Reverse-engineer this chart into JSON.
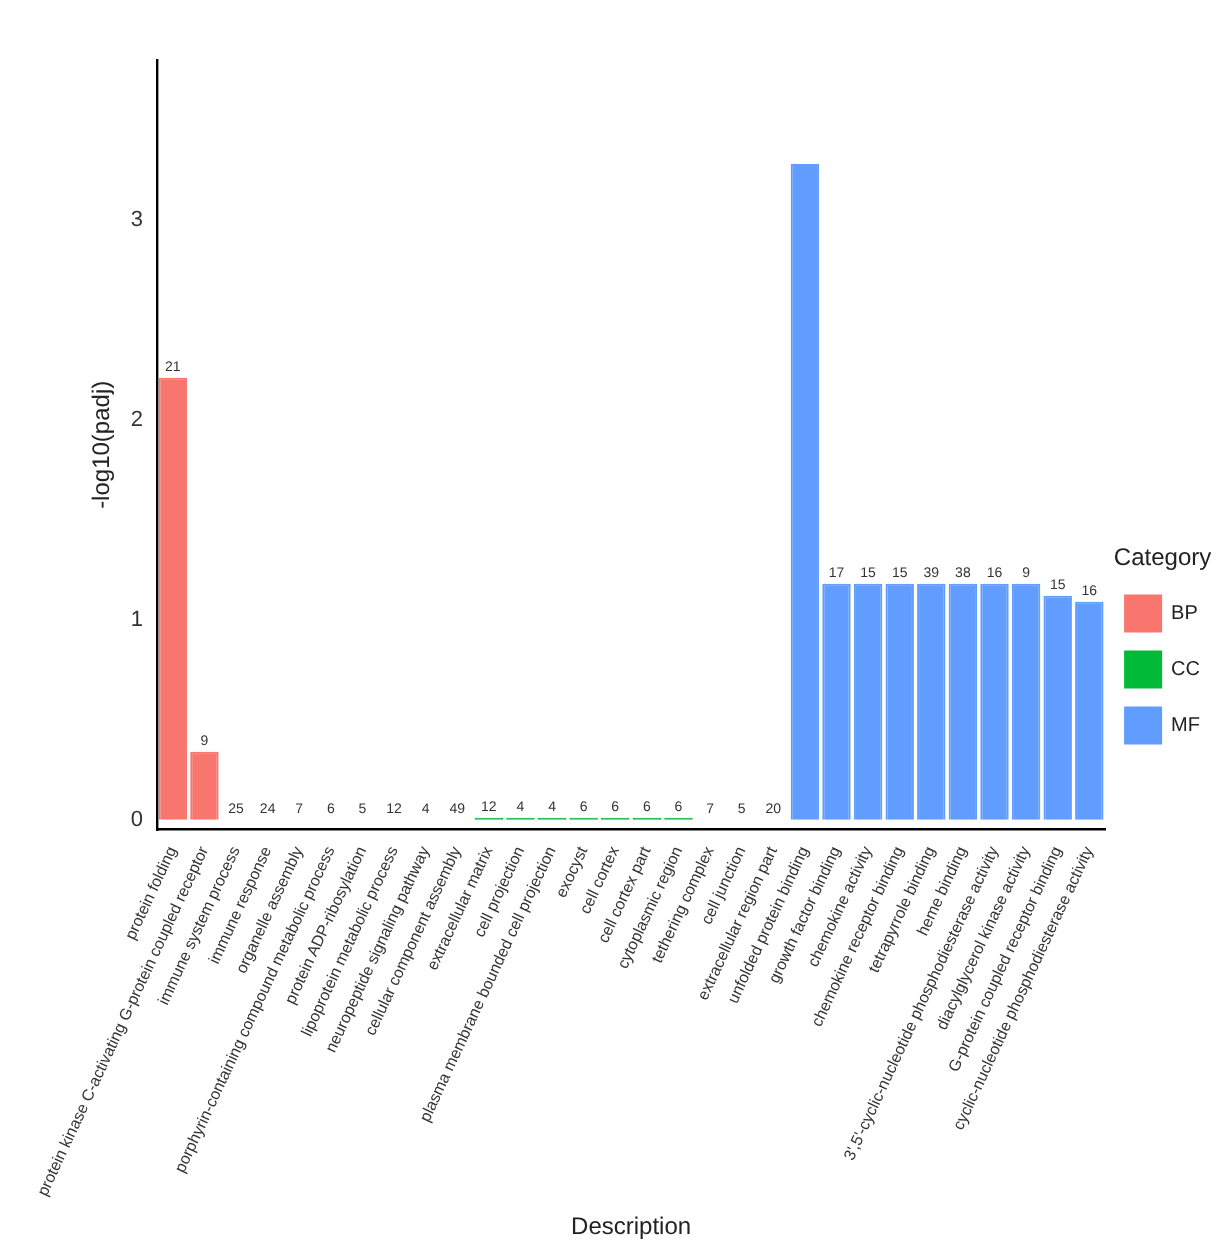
{
  "chart_data": {
    "type": "bar",
    "xlabel": "Description",
    "ylabel": "-log10(padj)",
    "legend_title": "Category",
    "legend": "right",
    "grid": false,
    "categories": [
      "protein folding",
      "protein kinase C-activating G-protein coupled receptor",
      "immune system process",
      "immune response",
      "organelle assembly",
      "porphyrin-containing compound metabolic process",
      "protein ADP-ribosylation",
      "lipoprotein metabolic process",
      "neuropeptide signaling pathway",
      "cellular component assembly",
      "extracellular matrix",
      "cell projection",
      "plasma membrane bounded cell projection",
      "exocyst",
      "cell cortex",
      "cell cortex part",
      "cytoplasmic region",
      "tethering complex",
      "cell junction",
      "extracellular region part",
      "unfolded protein binding",
      "growth factor binding",
      "chemokine activity",
      "chemokine receptor binding",
      "tetrapyrrole binding",
      "heme binding",
      "3',5'-cyclic-nucleotide phosphodiesterase activity",
      "diacylglycerol kinase activity",
      "G-protein coupled receptor binding",
      "cyclic-nucleotide phosphodiesterase activity"
    ],
    "ylim": [
      -0.05,
      3.8
    ],
    "yticks": [
      0,
      1,
      2,
      3
    ],
    "series": [
      {
        "name": "BP",
        "color": "#f8766d",
        "values": [
          2.21,
          0.34,
          0,
          0,
          0,
          0,
          0,
          0,
          0,
          0,
          null,
          null,
          null,
          null,
          null,
          null,
          null,
          null,
          null,
          null,
          null,
          null,
          null,
          null,
          null,
          null,
          null,
          null,
          null,
          null
        ]
      },
      {
        "name": "CC",
        "color": "#00ba38",
        "values": [
          null,
          null,
          null,
          null,
          null,
          null,
          null,
          null,
          null,
          null,
          0.01,
          0.01,
          0.01,
          0.01,
          0.01,
          0.01,
          0.01,
          0,
          0,
          0,
          null,
          null,
          null,
          null,
          null,
          null,
          null,
          null,
          null,
          null
        ]
      },
      {
        "name": "MF",
        "color": "#619cff",
        "values": [
          null,
          null,
          null,
          null,
          null,
          null,
          null,
          null,
          null,
          null,
          null,
          null,
          null,
          null,
          null,
          null,
          null,
          null,
          null,
          null,
          3.28,
          1.18,
          1.18,
          1.18,
          1.18,
          1.18,
          1.18,
          1.18,
          1.12,
          1.09
        ]
      }
    ],
    "annotations": [
      {
        "text": "21",
        "x": "protein folding",
        "y": 2.21
      },
      {
        "text": "9",
        "x": "protein kinase C-activating G-protein coupled receptor",
        "y": 0.34
      },
      {
        "text": "25",
        "x": "immune system process",
        "y": 0
      },
      {
        "text": "24",
        "x": "immune response",
        "y": 0
      },
      {
        "text": "7",
        "x": "organelle assembly",
        "y": 0
      },
      {
        "text": "6",
        "x": "porphyrin-containing compound metabolic process",
        "y": 0
      },
      {
        "text": "5",
        "x": "protein ADP-ribosylation",
        "y": 0
      },
      {
        "text": "12",
        "x": "lipoprotein metabolic process",
        "y": 0
      },
      {
        "text": "4",
        "x": "neuropeptide signaling pathway",
        "y": 0
      },
      {
        "text": "49",
        "x": "cellular component assembly",
        "y": 0
      },
      {
        "text": "12",
        "x": "extracellular matrix",
        "y": 0.01
      },
      {
        "text": "4",
        "x": "cell projection",
        "y": 0.01
      },
      {
        "text": "4",
        "x": "plasma membrane bounded cell projection",
        "y": 0.01
      },
      {
        "text": "6",
        "x": "exocyst",
        "y": 0.01
      },
      {
        "text": "6",
        "x": "cell cortex",
        "y": 0.01
      },
      {
        "text": "6",
        "x": "cell cortex part",
        "y": 0.01
      },
      {
        "text": "6",
        "x": "cytoplasmic region",
        "y": 0.01
      },
      {
        "text": "7",
        "x": "tethering complex",
        "y": 0
      },
      {
        "text": "5",
        "x": "cell junction",
        "y": 0
      },
      {
        "text": "20",
        "x": "extracellular region part",
        "y": 0
      },
      {
        "text": "17",
        "x": "growth factor binding",
        "y": 1.18
      },
      {
        "text": "15",
        "x": "chemokine activity",
        "y": 1.18
      },
      {
        "text": "15",
        "x": "chemokine receptor binding",
        "y": 1.18
      },
      {
        "text": "39",
        "x": "tetrapyrrole binding",
        "y": 1.18
      },
      {
        "text": "38",
        "x": "heme binding",
        "y": 1.18
      },
      {
        "text": "16",
        "x": "3',5'-cyclic-nucleotide phosphodiesterase activity",
        "y": 1.18
      },
      {
        "text": "9",
        "x": "diacylglycerol kinase activity",
        "y": 1.18
      },
      {
        "text": "15",
        "x": "G-protein coupled receptor binding",
        "y": 1.12
      },
      {
        "text": "16",
        "x": "cyclic-nucleotide phosphodiesterase activity",
        "y": 1.09
      }
    ]
  }
}
